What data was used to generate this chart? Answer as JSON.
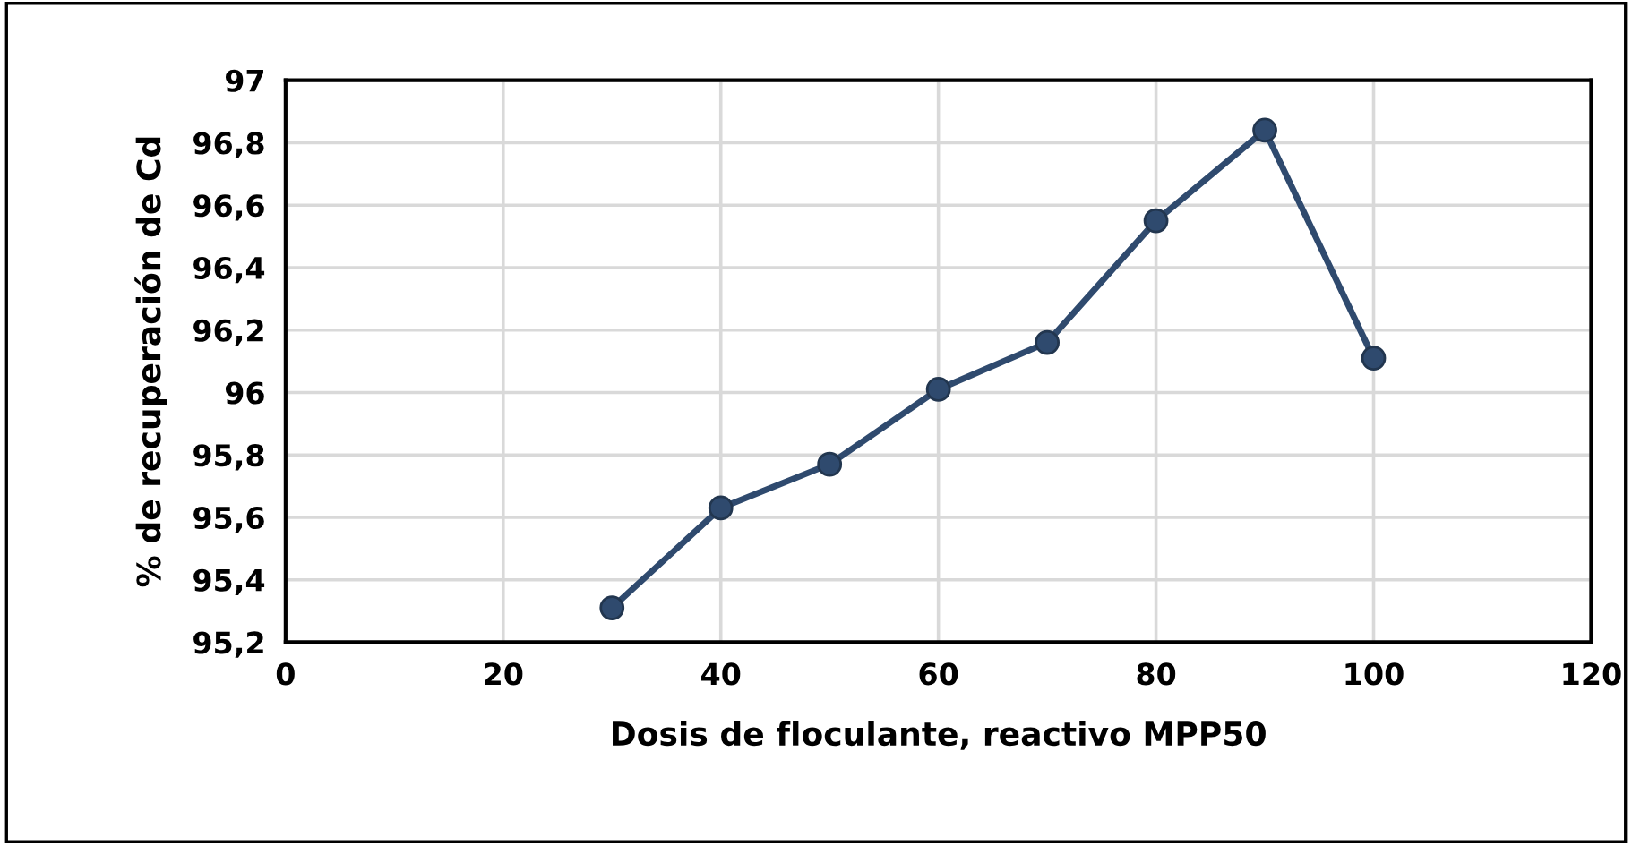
{
  "chart_data": {
    "type": "line",
    "xlabel": "Dosis de floculante, reactivo MPP50",
    "ylabel": "% de recuperación de Cd",
    "x": [
      30,
      40,
      50,
      60,
      70,
      80,
      90,
      100
    ],
    "series": [
      {
        "color": "#2f4a6e",
        "values": [
          95.31,
          95.63,
          95.77,
          96.01,
          96.16,
          96.55,
          96.84,
          96.11
        ]
      }
    ],
    "xlim": [
      0,
      120
    ],
    "xticks": [
      0,
      20,
      40,
      60,
      80,
      100,
      120
    ],
    "ylim": [
      95.2,
      97
    ],
    "yticks": [
      {
        "value": 95.2,
        "label": "95,2"
      },
      {
        "value": 95.4,
        "label": "95,4"
      },
      {
        "value": 95.6,
        "label": "95,6"
      },
      {
        "value": 95.8,
        "label": "95,8"
      },
      96,
      {
        "value": 96.2,
        "label": "96,2"
      },
      {
        "value": 96.4,
        "label": "96,4"
      },
      {
        "value": 96.6,
        "label": "96,6"
      },
      {
        "value": 96.8,
        "label": "96,8"
      },
      97
    ],
    "grid": true,
    "marker": "circle",
    "line_style": "solid",
    "legend": false
  }
}
